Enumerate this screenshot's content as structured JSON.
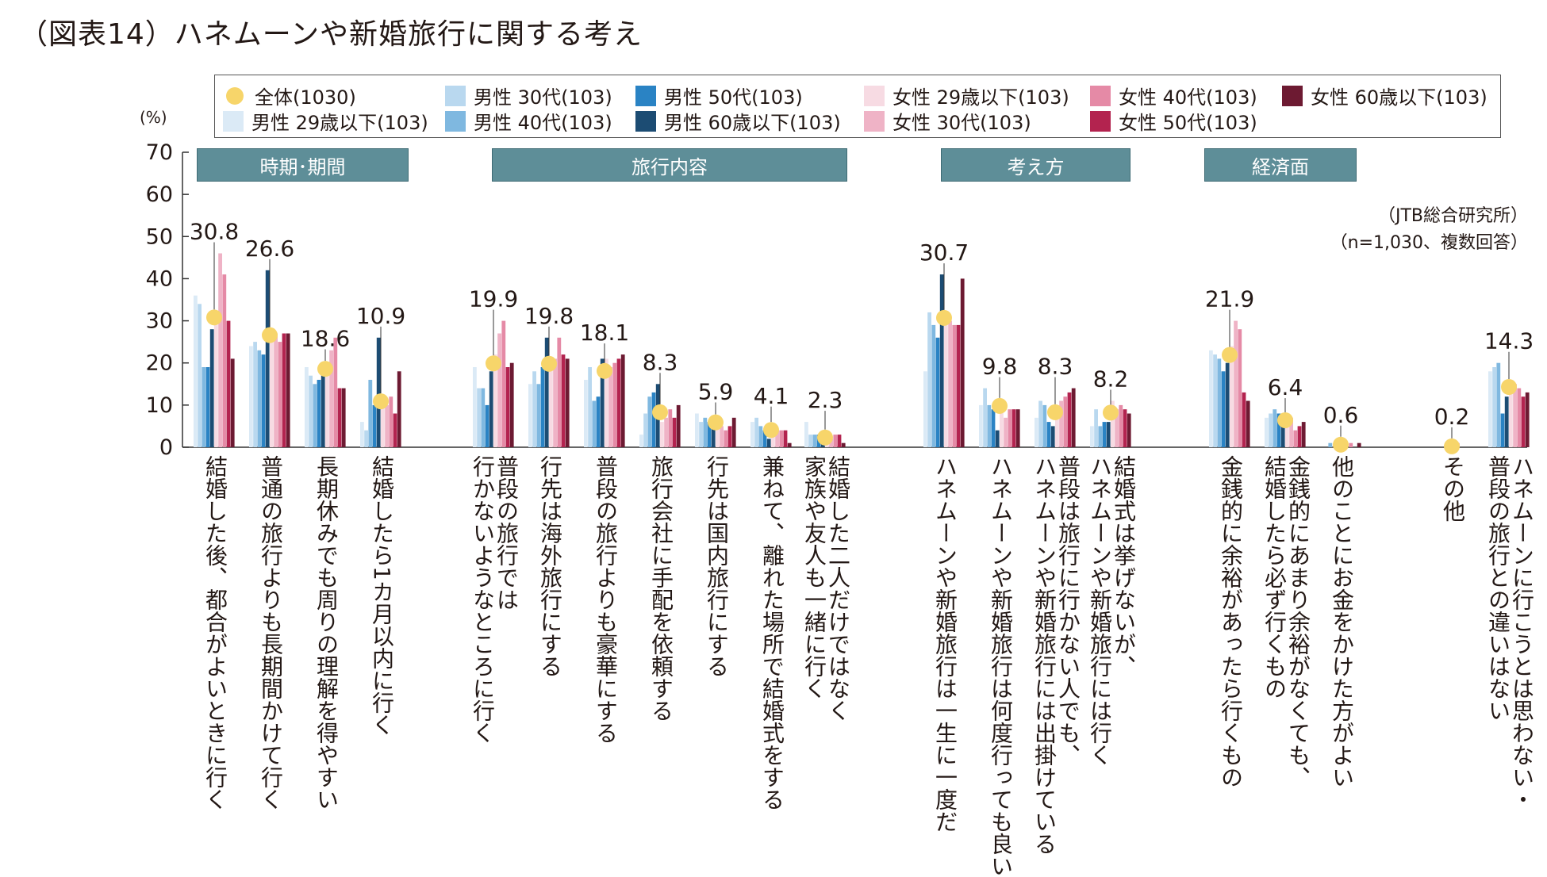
{
  "title": "（図表14）ハネムーンや新婚旅行に関する考え",
  "unit": "(%)",
  "source": {
    "line1": "（JTB総合研究所）",
    "line2": "（n=1,030、複数回答）"
  },
  "sections": [
    {
      "label": "時期･期間",
      "from": 0,
      "to": 3
    },
    {
      "label": "旅行内容",
      "from": 4,
      "to": 10
    },
    {
      "label": "考え方",
      "from": 11,
      "to": 14
    },
    {
      "label": "経済面",
      "from": 15,
      "to": 17
    }
  ],
  "legend": [
    {
      "label": "全体(1030)",
      "color": "#f7d56a",
      "marker": "dot"
    },
    {
      "label": "男性 29歳以下(103)",
      "color": "#dbeaf6",
      "marker": "square"
    },
    {
      "label": "男性 30代(103)",
      "color": "#b9d8ef",
      "marker": "square"
    },
    {
      "label": "男性 40代(103)",
      "color": "#7fb8e0",
      "marker": "square"
    },
    {
      "label": "男性 50代(103)",
      "color": "#2a83c4",
      "marker": "square"
    },
    {
      "label": "男性 60歳以下(103)",
      "color": "#1c4c73",
      "marker": "square"
    },
    {
      "label": "女性 29歳以下(103)",
      "color": "#f7dbe3",
      "marker": "square"
    },
    {
      "label": "女性 30代(103)",
      "color": "#efb3c6",
      "marker": "square"
    },
    {
      "label": "女性 40代(103)",
      "color": "#e58aa6",
      "marker": "square"
    },
    {
      "label": "女性 50代(103)",
      "color": "#b3234f",
      "marker": "square"
    },
    {
      "label": "女性 60歳以下(103)",
      "color": "#6d1a32",
      "marker": "square"
    }
  ],
  "chart_data": {
    "type": "bar",
    "ylabel": "(%)",
    "ylim": [
      0,
      70
    ],
    "yticks": [
      0,
      10,
      20,
      30,
      40,
      50,
      60,
      70
    ],
    "categories": [
      "結婚した後、都合がよいときに行く",
      "普通の旅行よりも長期間かけて行く",
      "長期休みでも周りの理解を得やすい",
      "結婚したら1カ月以内に行く",
      "普段の旅行では 行かないようなところに行く",
      "行先は海外旅行にする",
      "普段の旅行よりも豪華にする",
      "旅行会社に手配を依頼する",
      "行先は国内旅行にする",
      "兼ねて、離れた場所で結婚式をする",
      "結婚した二人だけではなく 家族や友人も一緒に行く",
      "ハネムーンや新婚旅行は一生に一度だ",
      "ハネムーンや新婚旅行は何度行っても良い",
      "普段は旅行に行かない人でも、 ハネムーンや新婚旅行には出掛けている",
      "結婚式は挙げないが、 ハネムーンや新婚旅行には行く",
      "金銭的に余裕があったら行くもの",
      "金銭的にあまり余裕がなくても、 結婚したら必ず行くもの",
      "他のことにお金をかけた方がよい",
      "その他",
      "ハネムーンに行こうとは思わない・ 普段の旅行との違いはない"
    ],
    "overall": [
      30.8,
      26.6,
      18.6,
      10.9,
      19.9,
      19.8,
      18.1,
      8.3,
      5.9,
      4.1,
      2.3,
      30.7,
      9.8,
      8.3,
      8.2,
      21.9,
      6.4,
      0.6,
      0.2,
      14.3
    ],
    "overall_labels": [
      "30.8",
      "26.6",
      "18.6",
      "10.9",
      "19.9",
      "19.8",
      "18.1",
      "8.3",
      "5.9",
      "4.1",
      "2.3",
      "30.7",
      "9.8",
      "8.3",
      "8.2",
      "21.9",
      "6.4",
      "0.6",
      "0.2",
      "14.3"
    ],
    "series": [
      {
        "name": "男性 29歳以下(103)",
        "values": [
          36,
          24,
          19,
          6,
          19,
          15,
          16,
          3,
          8,
          6,
          6,
          18,
          10,
          7,
          5,
          23,
          7,
          0,
          0,
          18
        ]
      },
      {
        "name": "男性 30代(103)",
        "values": [
          34,
          25,
          17,
          4,
          14,
          18,
          19,
          8,
          6,
          7,
          3,
          32,
          14,
          11,
          9,
          22,
          8,
          0,
          0,
          19
        ]
      },
      {
        "name": "男性 40代(103)",
        "values": [
          19,
          23,
          15,
          16,
          14,
          15,
          11,
          12,
          7,
          5,
          3,
          29,
          10,
          10,
          5,
          21,
          9,
          1,
          0,
          20
        ]
      },
      {
        "name": "男性 50代(103)",
        "values": [
          19,
          22,
          16,
          10,
          10,
          19,
          12,
          13,
          6,
          4,
          3,
          26,
          9,
          6,
          6,
          18,
          8,
          0,
          0,
          8
        ]
      },
      {
        "name": "男性 60歳以下(103)",
        "values": [
          28,
          42,
          19,
          26,
          18,
          26,
          21,
          15,
          6,
          2,
          2,
          41,
          4,
          5,
          6,
          20,
          7,
          1,
          0,
          12
        ]
      },
      {
        "name": "女性 29歳以下(103)",
        "values": [
          30,
          27,
          19,
          12,
          22,
          20,
          21,
          6,
          6,
          4,
          3,
          31,
          10,
          9,
          11,
          24,
          5,
          0,
          0,
          14
        ]
      },
      {
        "name": "女性 30代(103)",
        "values": [
          46,
          27,
          23,
          10,
          27,
          21,
          19,
          7,
          5,
          4,
          2,
          30,
          7,
          11,
          9,
          30,
          7,
          0,
          1,
          15
        ]
      },
      {
        "name": "女性 40代(103)",
        "values": [
          41,
          25,
          26,
          12,
          30,
          26,
          20,
          9,
          4,
          4,
          3,
          29,
          9,
          12,
          10,
          28,
          4,
          1,
          0,
          14
        ]
      },
      {
        "name": "女性 50代(103)",
        "values": [
          30,
          27,
          14,
          8,
          19,
          22,
          21,
          7,
          5,
          4,
          3,
          29,
          9,
          13,
          9,
          13,
          5,
          0,
          0,
          12
        ]
      },
      {
        "name": "女性 60歳以下(103)",
        "values": [
          21,
          27,
          14,
          18,
          20,
          21,
          22,
          10,
          7,
          1,
          1,
          40,
          9,
          14,
          8,
          11,
          6,
          1,
          0,
          13
        ]
      }
    ]
  }
}
